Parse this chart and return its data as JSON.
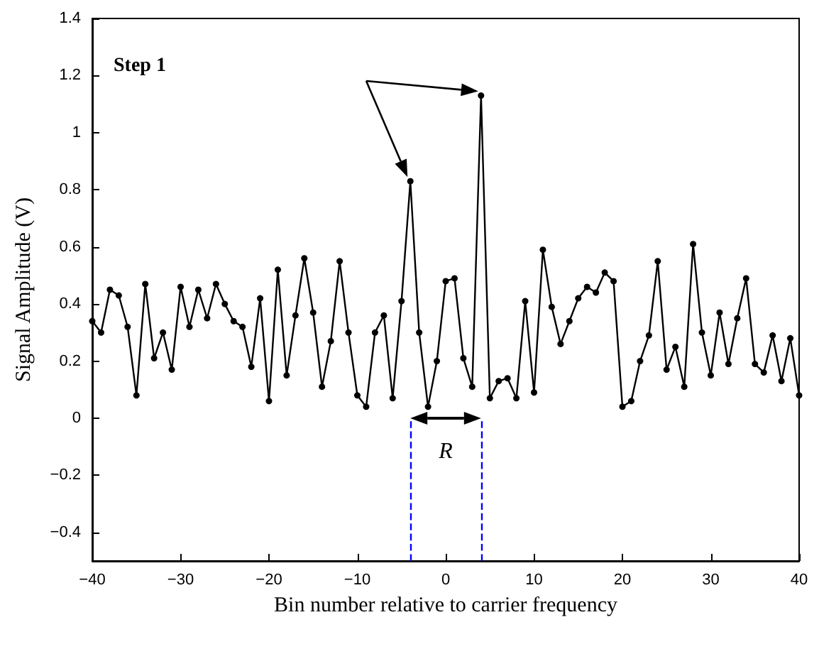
{
  "chart_data": {
    "type": "line",
    "xlabel": "Bin number relative to carrier frequency",
    "ylabel": "Signal Amplitude (V)",
    "x": [
      -40,
      -39,
      -38,
      -37,
      -36,
      -35,
      -34,
      -33,
      -32,
      -31,
      -30,
      -29,
      -28,
      -27,
      -26,
      -25,
      -24,
      -23,
      -22,
      -21,
      -20,
      -19,
      -18,
      -17,
      -16,
      -15,
      -14,
      -13,
      -12,
      -11,
      -10,
      -9,
      -8,
      -7,
      -6,
      -5,
      -4,
      -3,
      -2,
      -1,
      0,
      1,
      2,
      3,
      4,
      5,
      6,
      7,
      8,
      9,
      10,
      11,
      12,
      13,
      14,
      15,
      16,
      17,
      18,
      19,
      20,
      21,
      22,
      23,
      24,
      25,
      26,
      27,
      28,
      29,
      30,
      31,
      32,
      33,
      34,
      35,
      36,
      37,
      38,
      39,
      40
    ],
    "series": [
      {
        "color": "#000000",
        "values": [
          0.34,
          0.3,
          0.45,
          0.43,
          0.32,
          0.08,
          0.47,
          0.21,
          0.3,
          0.17,
          0.46,
          0.32,
          0.45,
          0.35,
          0.47,
          0.4,
          0.34,
          0.32,
          0.18,
          0.42,
          0.06,
          0.52,
          0.15,
          0.36,
          0.56,
          0.37,
          0.11,
          0.27,
          0.55,
          0.3,
          0.08,
          0.04,
          0.3,
          0.36,
          0.07,
          0.41,
          0.83,
          0.3,
          0.04,
          0.2,
          0.48,
          0.49,
          0.21,
          0.11,
          1.13,
          0.07,
          0.13,
          0.14,
          0.07,
          0.41,
          0.09,
          0.59,
          0.39,
          0.26,
          0.34,
          0.42,
          0.46,
          0.44,
          0.51,
          0.48,
          0.04,
          0.06,
          0.2,
          0.29,
          0.55,
          0.17,
          0.25,
          0.11,
          0.61,
          0.3,
          0.15,
          0.37,
          0.19,
          0.35,
          0.49,
          0.19,
          0.16,
          0.29,
          0.13,
          0.28,
          0.08
        ]
      }
    ],
    "xlim": [
      -40,
      40
    ],
    "xticks": [
      -40,
      -30,
      -20,
      -10,
      0,
      10,
      20,
      30,
      40
    ],
    "ylim": [
      -0.5,
      1.4
    ],
    "yticks": [
      -0.4,
      -0.2,
      0,
      0.2,
      0.4,
      0.6,
      0.8,
      1,
      1.2,
      1.4
    ],
    "ref_lines": [
      {
        "axis": "x",
        "value": -4,
        "color": "#0000ff",
        "line_style": "dashed"
      },
      {
        "axis": "x",
        "value": 4,
        "color": "#0000ff",
        "line_style": "dashed"
      }
    ],
    "annotations": [
      "Step 1",
      "R"
    ],
    "marker": "circle",
    "line_style": "solid",
    "grid": false
  }
}
